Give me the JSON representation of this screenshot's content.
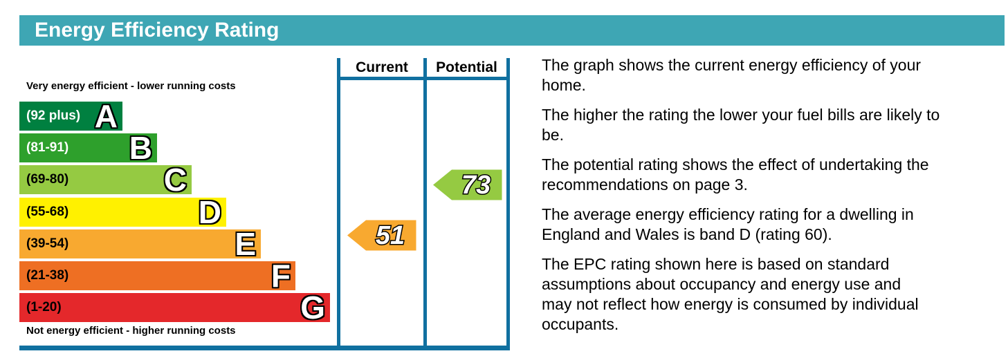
{
  "title": "Energy Efficiency Rating",
  "colors": {
    "header_bar": "#3EA6B4",
    "table_line": "#1070A0",
    "text": "#000000"
  },
  "chart_data": {
    "type": "bar",
    "orientation": "horizontal",
    "title": "Energy Efficiency Rating",
    "top_caption": "Very energy efficient - lower running costs",
    "bottom_caption": "Not energy efficient - higher running costs",
    "columns": {
      "current_label": "Current",
      "potential_label": "Potential"
    },
    "bands": [
      {
        "letter": "A",
        "range_label": "(92 plus)",
        "color": "#008040",
        "label_color": "#FFFFFF"
      },
      {
        "letter": "B",
        "range_label": "(81-91)",
        "color": "#2EA02C",
        "label_color": "#FFFFFF"
      },
      {
        "letter": "C",
        "range_label": "(69-80)",
        "color": "#95CA42",
        "label_color": "#000000"
      },
      {
        "letter": "D",
        "range_label": "(55-68)",
        "color": "#FFF100",
        "label_color": "#000000"
      },
      {
        "letter": "E",
        "range_label": "(39-54)",
        "color": "#F8A930",
        "label_color": "#000000"
      },
      {
        "letter": "F",
        "range_label": "(21-38)",
        "color": "#EE6F23",
        "label_color": "#000000"
      },
      {
        "letter": "G",
        "range_label": "(1-20)",
        "color": "#E4282B",
        "label_color": "#000000"
      }
    ],
    "ratings": {
      "current": {
        "value": 51,
        "band": "E",
        "band_index": 4,
        "color": "#F8A930"
      },
      "potential": {
        "value": 73,
        "band": "C",
        "band_index": 2,
        "color": "#95CA42"
      }
    }
  },
  "description": {
    "paragraphs": [
      "The graph shows the current energy efficiency of your\nhome.",
      "The higher the rating the lower your fuel bills are likely to\nbe.",
      "The potential rating shows the effect of undertaking the\nrecommendations on page 3.",
      "The average energy efficiency rating for a dwelling in\nEngland and Wales is band D (rating 60).",
      "The EPC rating shown here is based on standard\nassumptions about occupancy and energy use and\nmay not reflect how energy is consumed by individual\noccupants."
    ]
  }
}
